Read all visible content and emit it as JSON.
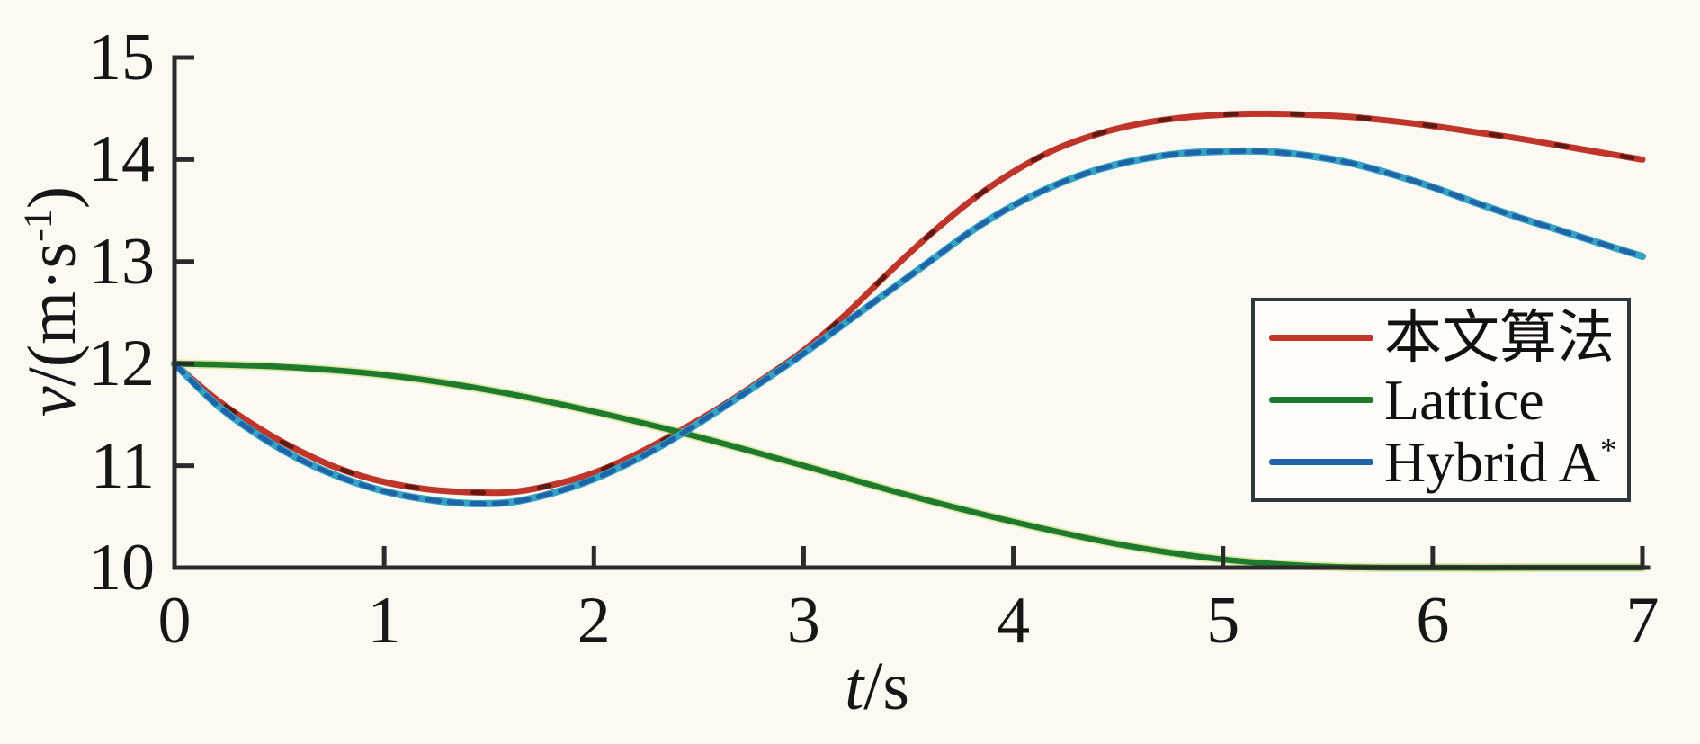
{
  "chart_data": {
    "type": "line",
    "title": "",
    "xlabel": {
      "variable": "t",
      "unit": "/s",
      "full": "t/s"
    },
    "ylabel": {
      "variable": "v",
      "unit_open": "/(m·s",
      "exponent": "-1",
      "unit_close": ")",
      "full": "v/(m·s⁻¹)"
    },
    "xlim": [
      0,
      7
    ],
    "ylim": [
      10,
      15
    ],
    "xticks": [
      "0",
      "1",
      "2",
      "3",
      "4",
      "5",
      "6",
      "7"
    ],
    "yticks": [
      "10",
      "11",
      "12",
      "13",
      "14",
      "15"
    ],
    "grid": false,
    "legend_position": "middle-right",
    "axis_color": "#2b2b2b",
    "background_color": "#fbf9f1",
    "series": [
      {
        "name": "本文算法",
        "label": {
          "text": "本文算法",
          "sup": ""
        },
        "color": "#c0352a",
        "accent_color": "#4a150e",
        "x": [
          0,
          0.2,
          0.4,
          0.6,
          0.8,
          1,
          1.2,
          1.4,
          1.6,
          1.8,
          2,
          2.2,
          2.4,
          2.6,
          2.8,
          3,
          3.2,
          3.4,
          3.6,
          3.8,
          4,
          4.2,
          4.4,
          4.6,
          4.8,
          5,
          5.2,
          5.4,
          5.6,
          5.8,
          6,
          6.2,
          6.4,
          6.6,
          6.8,
          7
        ],
        "y": [
          12.0,
          11.65,
          11.37,
          11.14,
          10.96,
          10.84,
          10.77,
          10.74,
          10.74,
          10.81,
          10.93,
          11.11,
          11.33,
          11.57,
          11.84,
          12.13,
          12.48,
          12.88,
          13.26,
          13.6,
          13.88,
          14.1,
          14.25,
          14.35,
          14.41,
          14.44,
          14.45,
          14.44,
          14.42,
          14.38,
          14.33,
          14.27,
          14.21,
          14.14,
          14.07,
          14.0
        ]
      },
      {
        "name": "Lattice",
        "label": {
          "text": "Lattice",
          "sup": ""
        },
        "color": "#1e7a2c",
        "accent_color": "#b9d44e",
        "x": [
          0,
          0.5,
          1,
          1.5,
          2,
          2.5,
          3,
          3.5,
          4,
          4.5,
          5,
          5.5,
          6,
          6.5,
          7
        ],
        "y": [
          12.0,
          11.97,
          11.89,
          11.74,
          11.53,
          11.28,
          11.0,
          10.71,
          10.45,
          10.23,
          10.08,
          10.01,
          10.0,
          10.0,
          10.0
        ]
      },
      {
        "name": "Hybrid A*",
        "label": {
          "text": "Hybrid A",
          "sup": "*"
        },
        "color": "#1f63a8",
        "accent_color": "#34a3c4",
        "x": [
          0,
          0.2,
          0.4,
          0.6,
          0.8,
          1,
          1.2,
          1.4,
          1.6,
          1.8,
          2,
          2.2,
          2.4,
          2.6,
          2.8,
          3,
          3.2,
          3.4,
          3.6,
          3.8,
          4,
          4.2,
          4.4,
          4.6,
          4.8,
          5,
          5.2,
          5.4,
          5.6,
          5.8,
          6,
          6.2,
          6.4,
          6.6,
          6.8,
          7
        ],
        "y": [
          12.0,
          11.6,
          11.3,
          11.06,
          10.88,
          10.75,
          10.67,
          10.63,
          10.64,
          10.73,
          10.87,
          11.06,
          11.29,
          11.55,
          11.82,
          12.1,
          12.4,
          12.7,
          13.0,
          13.3,
          13.55,
          13.75,
          13.9,
          14.0,
          14.06,
          14.08,
          14.08,
          14.04,
          13.97,
          13.86,
          13.73,
          13.58,
          13.44,
          13.31,
          13.18,
          13.05
        ]
      }
    ]
  }
}
